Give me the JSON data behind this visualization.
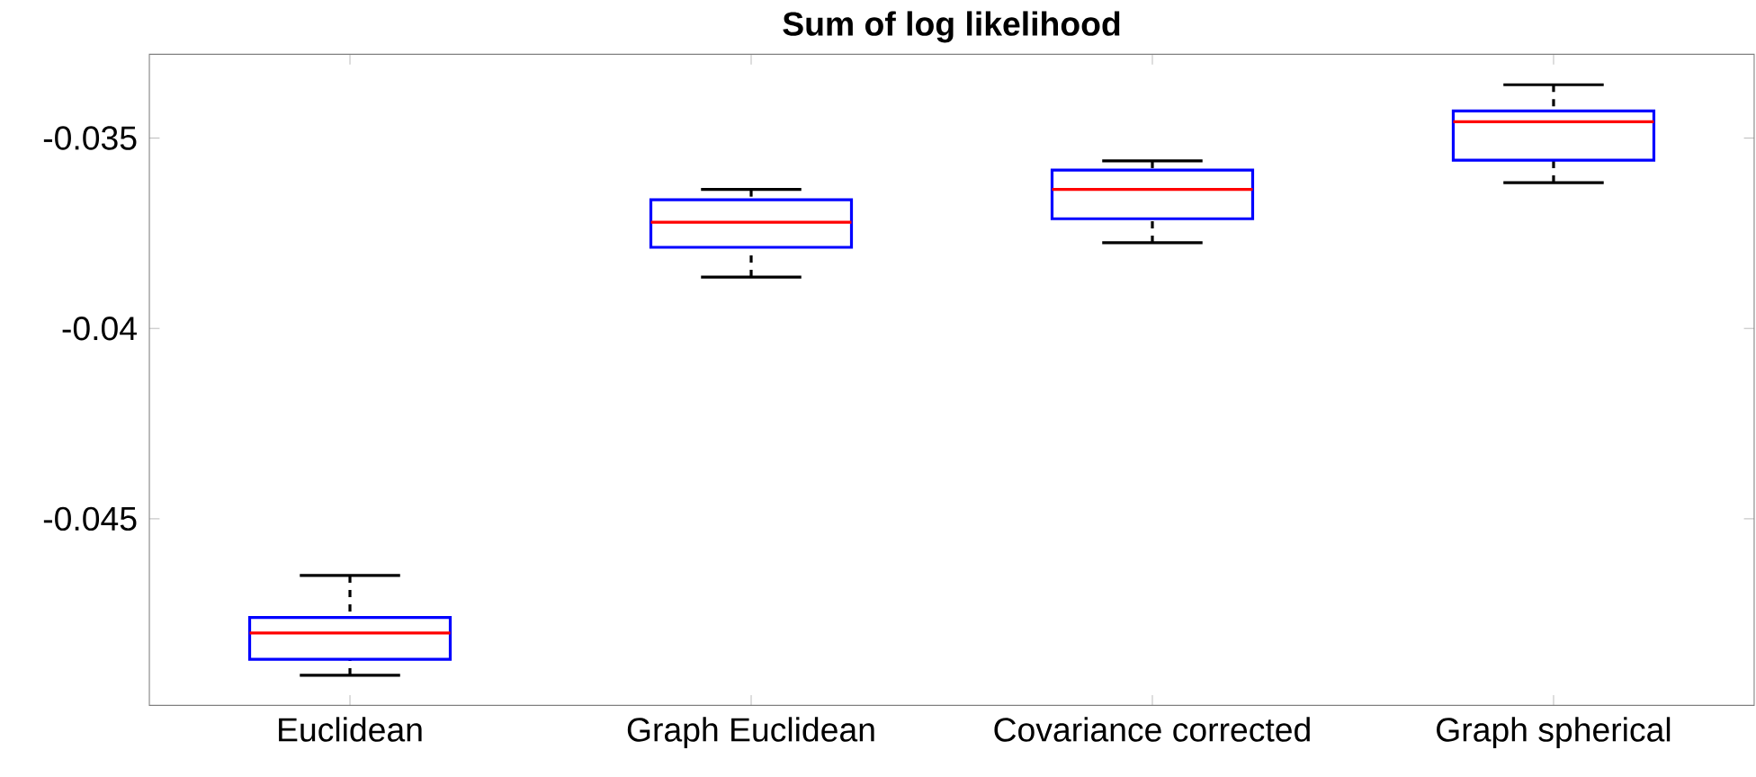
{
  "chart_data": {
    "type": "box",
    "title": "Sum of log likelihood",
    "categories": [
      "Euclidean",
      "Graph Euclidean",
      "Covariance corrected",
      "Graph spherical"
    ],
    "series": [
      {
        "color": "#0000ff",
        "boxes": [
          {
            "low": -0.04911,
            "q1": -0.04869,
            "median": -0.048,
            "q3": -0.04759,
            "high": -0.04649
          },
          {
            "low": -0.03865,
            "q1": -0.03787,
            "median": -0.03721,
            "q3": -0.03662,
            "high": -0.03635
          },
          {
            "low": -0.03775,
            "q1": -0.03712,
            "median": -0.03635,
            "q3": -0.03584,
            "high": -0.0356
          },
          {
            "low": -0.03617,
            "q1": -0.03558,
            "median": -0.03457,
            "q3": -0.03429,
            "high": -0.0336
          }
        ]
      }
    ],
    "ylim": [
      -0.0499,
      -0.0328
    ],
    "yticks": [
      -0.045,
      -0.04,
      -0.035
    ],
    "grid": false
  }
}
